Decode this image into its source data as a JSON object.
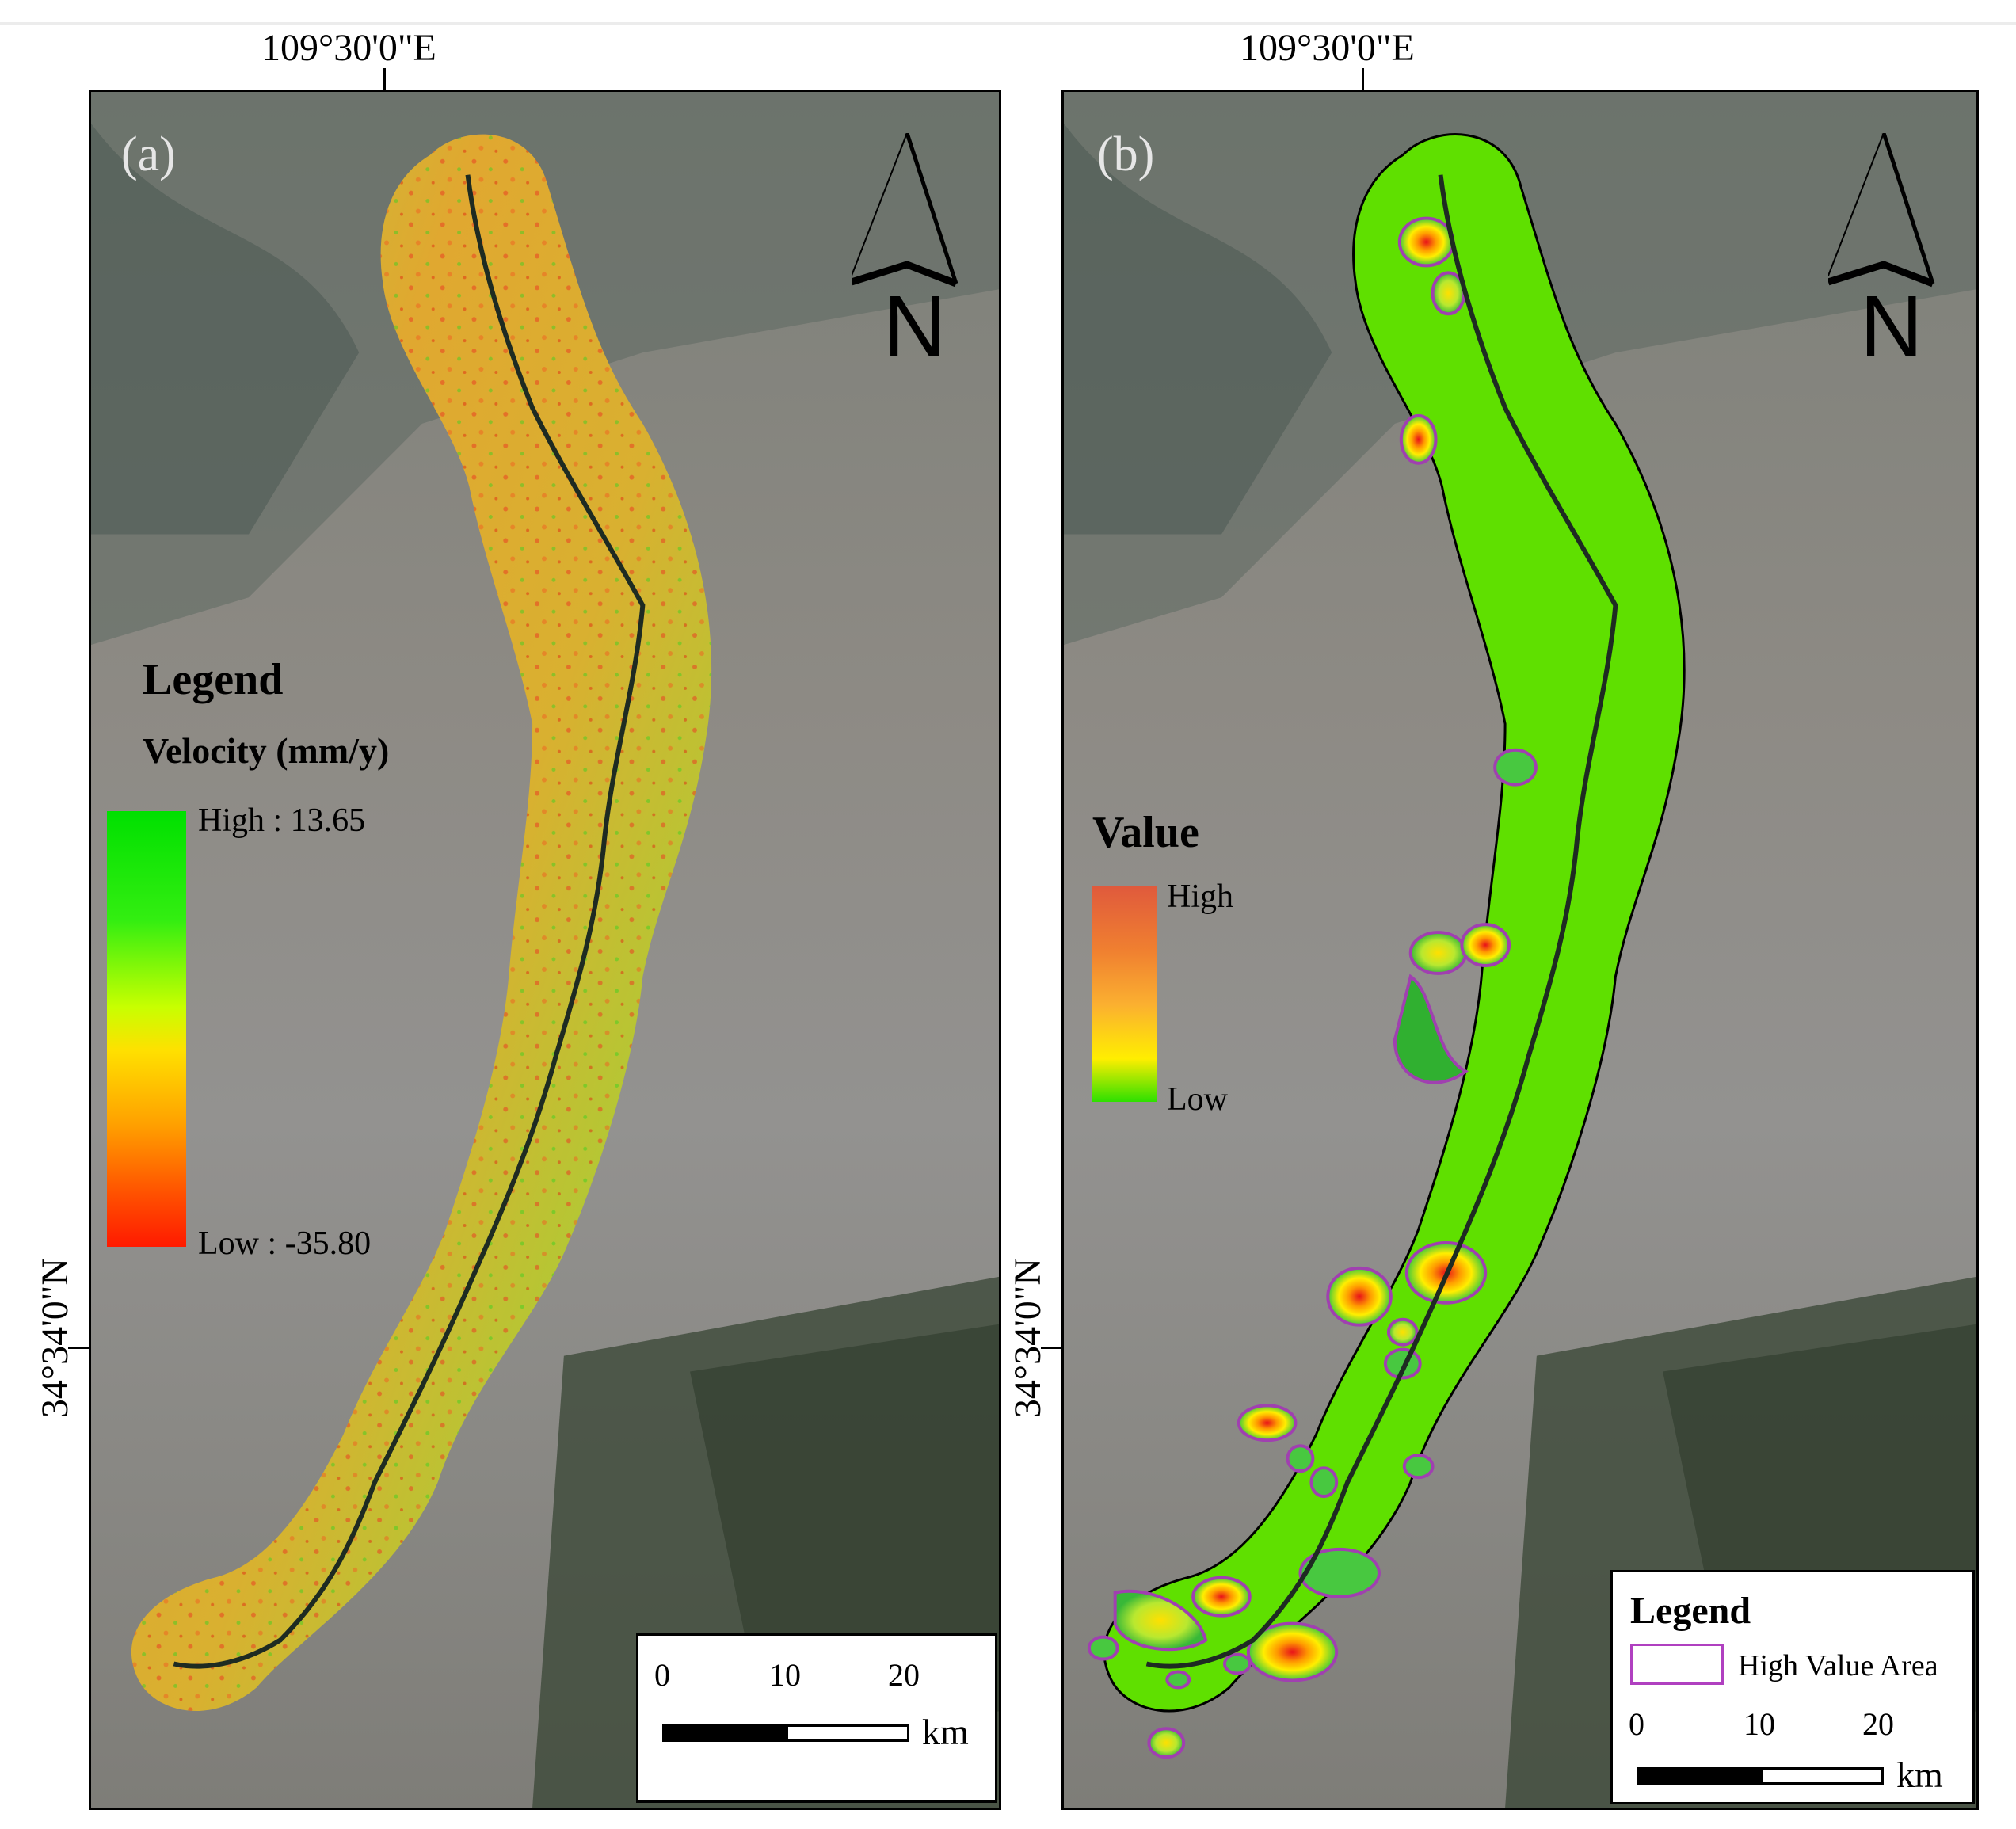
{
  "coordinates": {
    "longitude": "109°30'0\"E",
    "latitude": "34°34'0\"N"
  },
  "panel_a": {
    "label": "(a)",
    "north": "N",
    "legend": {
      "title": "Legend",
      "subtitle": "Velocity (mm/y)",
      "high": "High : 13.65",
      "low": "Low : -35.80",
      "high_value": 13.65,
      "low_value": -35.8,
      "colors": [
        "#00e000",
        "#c8ff00",
        "#ffe000",
        "#ffa000",
        "#ff1a00"
      ]
    },
    "scale": {
      "ticks": [
        "0",
        "10",
        "20"
      ],
      "unit": "km"
    }
  },
  "panel_b": {
    "label": "(b)",
    "north": "N",
    "legend_value": {
      "title": "Value",
      "high": "High",
      "low": "Low",
      "colors": [
        "#e05a3c",
        "#f08030",
        "#ffee00",
        "#2ee000"
      ]
    },
    "legend": {
      "title": "Legend",
      "item": "High Value Area",
      "item_color": "#b040c0"
    },
    "scale": {
      "ticks": [
        "0",
        "10",
        "20"
      ],
      "unit": "km"
    }
  }
}
